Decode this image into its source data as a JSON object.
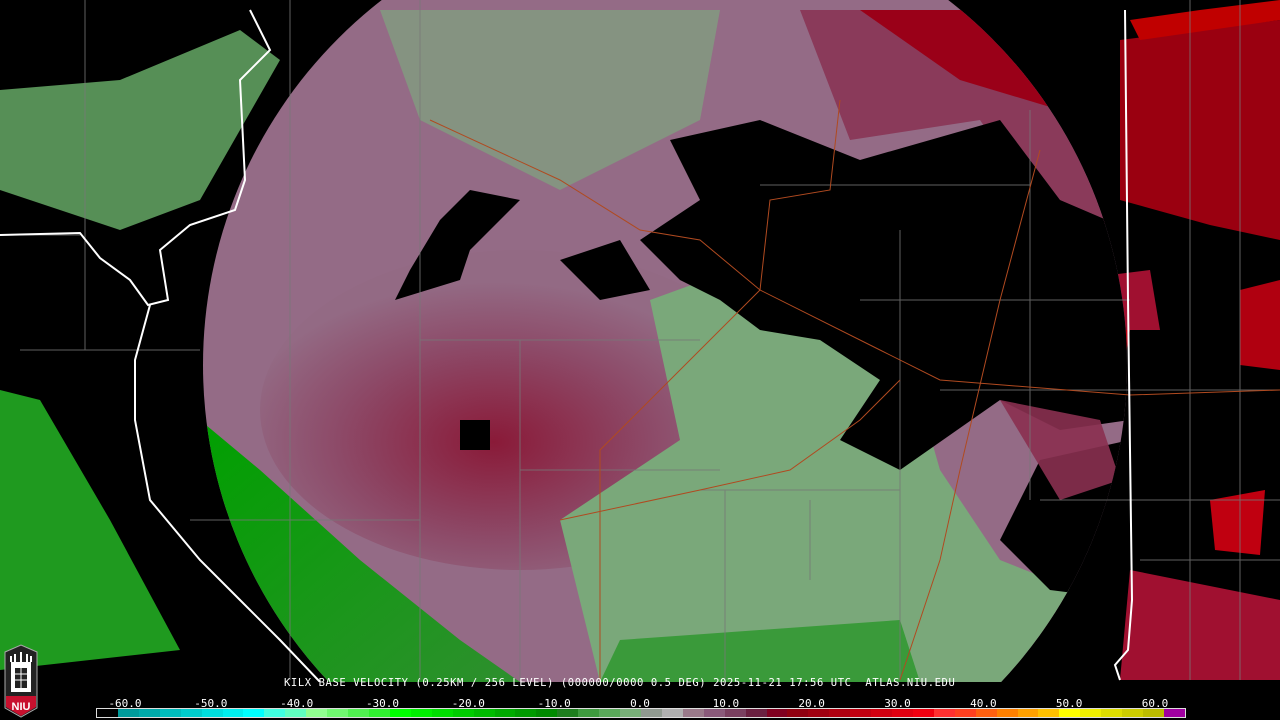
{
  "caption": "KILX BASE VELOCITY (0.25KM / 256 LEVEL) (000000/0000 0.5 DEG) 2025-11-21 17:56 UTC  ATLAS.NIU.EDU",
  "logo": {
    "text": "NIU",
    "icon": "niu-castle-logo-icon"
  },
  "colorbar": {
    "units_min": -64,
    "units_max": 64,
    "tick_labels": [
      "-60.0",
      "-50.0",
      "-40.0",
      "-30.0",
      "-20.0",
      "-10.0",
      "0.0",
      "10.0",
      "20.0",
      "30.0",
      "40.0",
      "50.0",
      "60.0"
    ],
    "tick_values": [
      -60,
      -50,
      -40,
      -30,
      -20,
      -10,
      0,
      10,
      20,
      30,
      40,
      50,
      60
    ],
    "colors": [
      "#000000",
      "#009a9a",
      "#00aaaa",
      "#00bcbc",
      "#00cccc",
      "#00dede",
      "#00eeee",
      "#00ffff",
      "#40ffe0",
      "#60ffc0",
      "#90ff90",
      "#70f870",
      "#50f050",
      "#30f030",
      "#00ff00",
      "#00ee00",
      "#00dd00",
      "#00cc00",
      "#00bb00",
      "#00aa00",
      "#009a00",
      "#008a00",
      "#1e7e1e",
      "#3e9a3e",
      "#5aa85a",
      "#78b078",
      "#909a90",
      "#b0b0b0",
      "#9a7a8a",
      "#8a5a7a",
      "#7a4060",
      "#6a2040",
      "#800020",
      "#900010",
      "#a00010",
      "#b00010",
      "#c00010",
      "#d00010",
      "#e00010",
      "#f00010",
      "#ff3030",
      "#ff4020",
      "#ff6010",
      "#ff8000",
      "#ffa000",
      "#ffc000",
      "#ffff00",
      "#eeee00",
      "#dddd00",
      "#cccc00",
      "#bbbb00",
      "#a000a0"
    ]
  },
  "radar": {
    "site": "KILX",
    "product": "base velocity",
    "inbound_color": "#4e9a4e",
    "outbound_color": "#8a2040"
  }
}
